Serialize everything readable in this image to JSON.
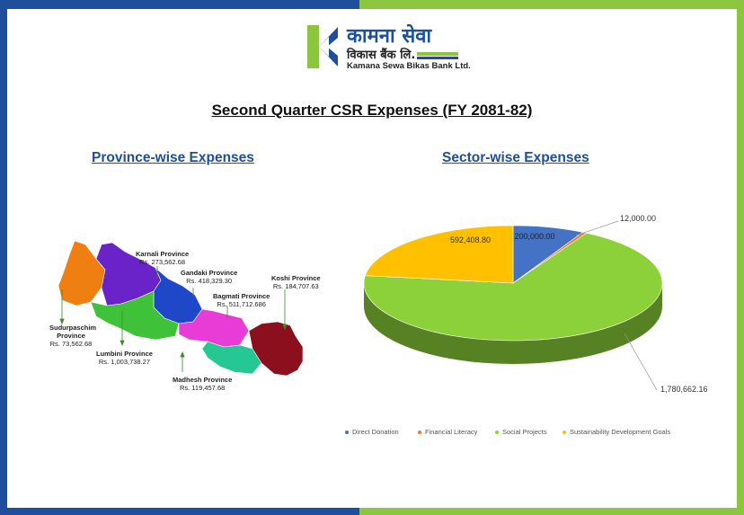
{
  "logo": {
    "nepali_line1": "कामना सेवा",
    "nepali_line2": "विकास बैंक लि.",
    "english_name": "Kamana Sewa Bikas Bank Ltd."
  },
  "title": "Second Quarter CSR Expenses (FY 2081-82)",
  "left_heading": "Province-wise Expenses",
  "right_heading": "Sector-wise Expenses",
  "provinces": [
    {
      "name": "Karnali Province",
      "amount": "Rs. 273,562.68",
      "color": "#6a23c9"
    },
    {
      "name": "Gandaki Province",
      "amount": "Rs. 418,329.30",
      "color": "#1f48c9"
    },
    {
      "name": "Bagmati Province",
      "amount": "Rs. 511,712.686",
      "color": "#e93cd6"
    },
    {
      "name": "Koshi Province",
      "amount": "Rs. 184,707.63",
      "color": "#8b0f1c"
    },
    {
      "name": "Sudurpaschim Province",
      "amount": "Rs. 73,562.68",
      "color": "#f07f12"
    },
    {
      "name": "Lumbini Province",
      "amount": "Rs. 1,003,738.27",
      "color": "#3fc23a"
    },
    {
      "name": "Madhesh Province",
      "amount": "Rs. 119,457.68",
      "color": "#25c793"
    }
  ],
  "chart_data": {
    "type": "pie",
    "title": "Sector-wise Expenses",
    "categories": [
      "Direct Donation",
      "Financial Literacy",
      "Social Projects",
      "Sustainability Development Goals"
    ],
    "values": [
      200000.0,
      12000.0,
      1780662.16,
      592408.8
    ],
    "value_labels": [
      "200,000.00",
      "12,000.00",
      "1,780,662.16",
      "592,408.80"
    ],
    "colors": [
      "#4472c4",
      "#ed7d31",
      "#8cd13a",
      "#ffc000"
    ],
    "legend_position": "bottom"
  },
  "colors": {
    "brand_blue": "#1d4f9c",
    "brand_green": "#8cc63f"
  }
}
